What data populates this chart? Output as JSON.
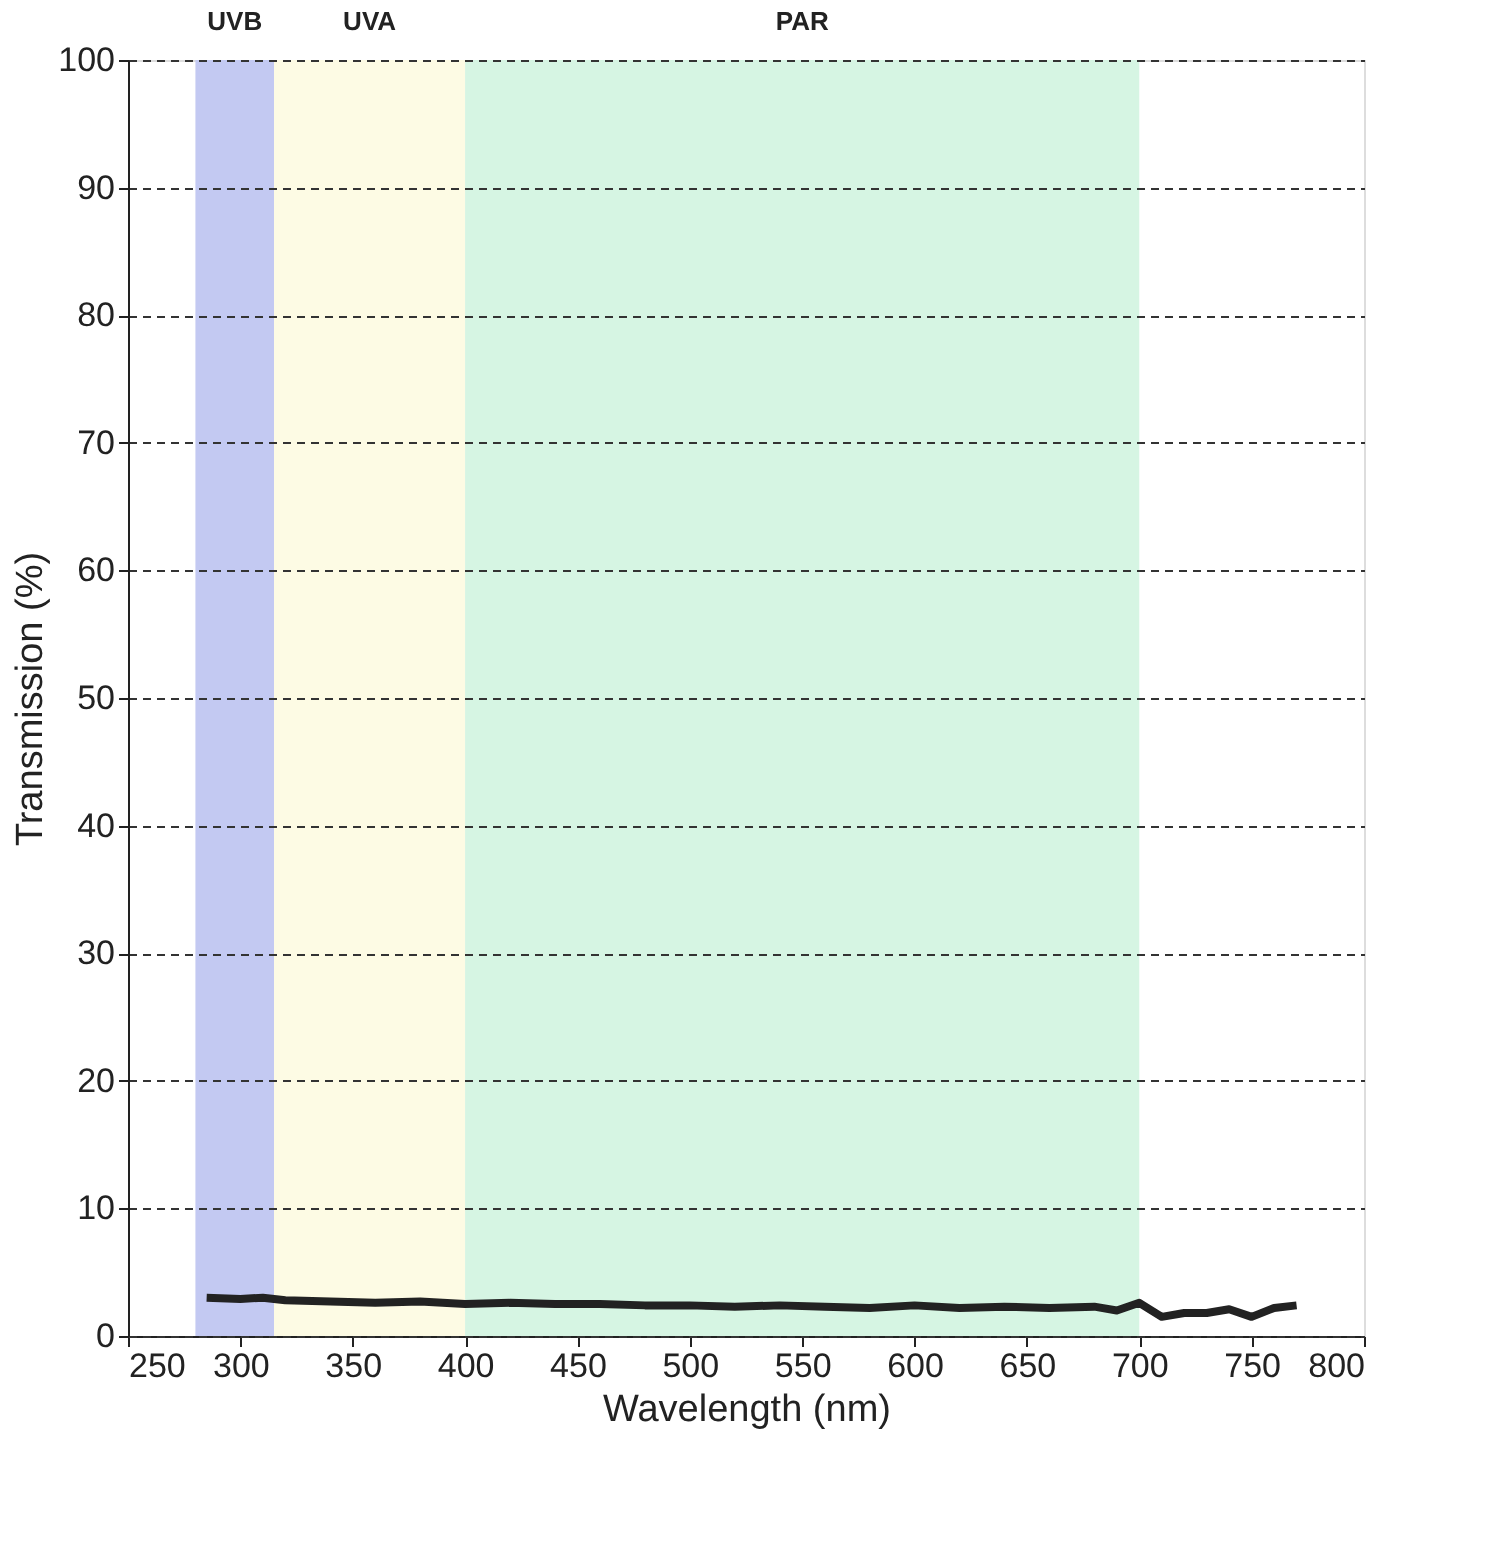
{
  "chart_data": {
    "type": "line",
    "xlabel": "Wavelength (nm)",
    "ylabel": "Transmission (%)",
    "x": [
      285,
      300,
      310,
      320,
      340,
      360,
      380,
      400,
      420,
      440,
      460,
      480,
      500,
      520,
      540,
      560,
      580,
      600,
      620,
      640,
      660,
      680,
      690,
      700,
      710,
      720,
      730,
      740,
      750,
      760,
      770
    ],
    "series": [
      {
        "color": "#222222",
        "values": [
          3.0,
          2.9,
          3.0,
          2.8,
          2.7,
          2.6,
          2.7,
          2.5,
          2.6,
          2.5,
          2.5,
          2.4,
          2.4,
          2.3,
          2.4,
          2.3,
          2.2,
          2.4,
          2.2,
          2.3,
          2.2,
          2.3,
          2.0,
          2.6,
          1.5,
          1.8,
          1.8,
          2.1,
          1.5,
          2.2,
          2.4
        ]
      }
    ],
    "xlim": [
      250,
      800
    ],
    "xticks": [
      250,
      300,
      350,
      400,
      450,
      500,
      550,
      600,
      650,
      700,
      750,
      800
    ],
    "ylim": [
      0,
      100
    ],
    "yticks": [
      0,
      10,
      20,
      30,
      40,
      50,
      60,
      70,
      80,
      90,
      100
    ],
    "grid": "y",
    "marker": "none",
    "line_style": "solid",
    "bands": [
      {
        "axis": "x",
        "from": 280,
        "to": 315,
        "label": "UVB",
        "color": "#c3c9f2"
      },
      {
        "axis": "x",
        "from": 315,
        "to": 400,
        "label": "UVA",
        "color": "#fdfbe4"
      },
      {
        "axis": "x",
        "from": 400,
        "to": 700,
        "label": "PAR",
        "color": "#d6f5e3"
      }
    ]
  }
}
